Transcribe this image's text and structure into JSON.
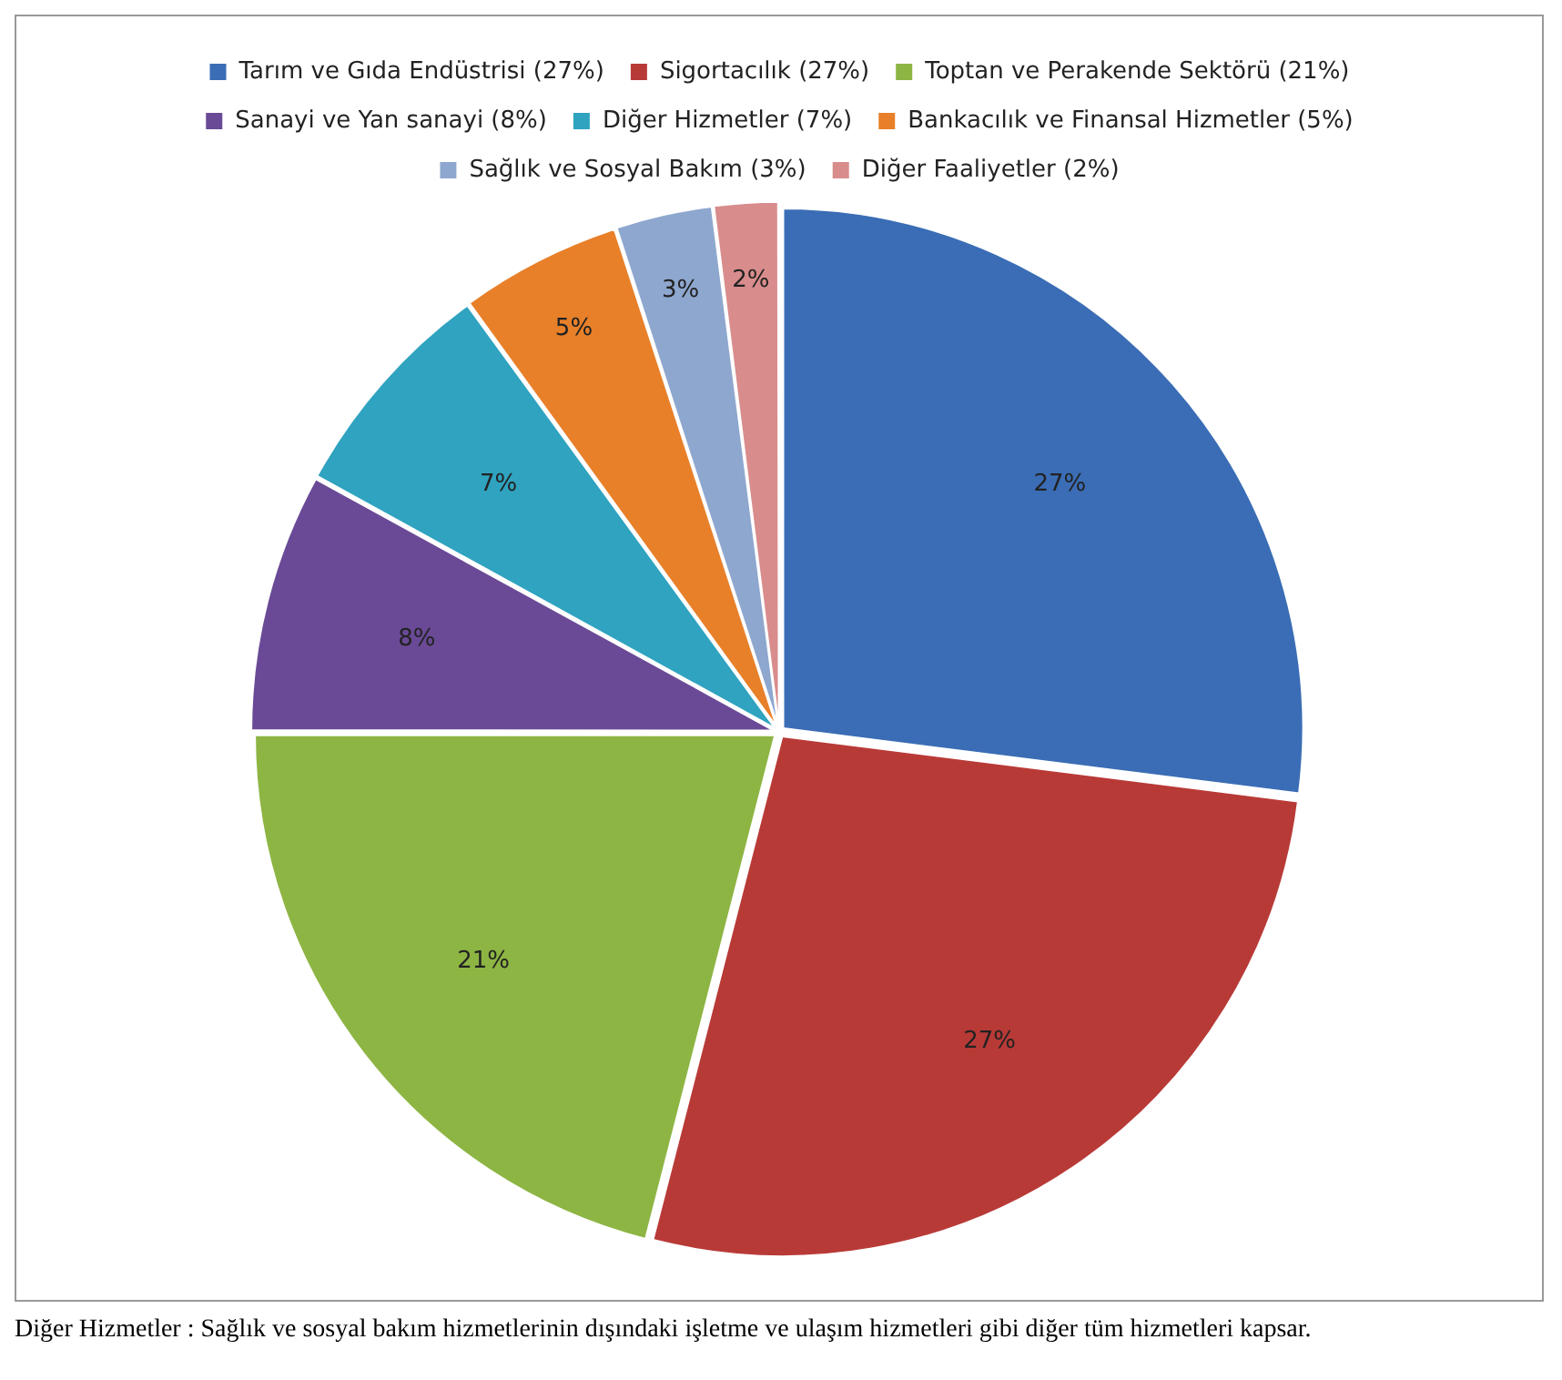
{
  "chart_data": {
    "type": "pie",
    "categories": [
      "Tarım ve Gıda Endüstrisi (27%)",
      "Sigortacılık (27%)",
      "Toptan ve Perakende Sektörü (21%)",
      "Sanayi ve Yan sanayi (8%)",
      "Diğer Hizmetler (7%)",
      "Bankacılık ve Finansal Hizmetler (5%)",
      "Sağlık ve Sosyal Bakım (3%)",
      "Diğer Faaliyetler (2%)"
    ],
    "values": [
      27,
      27,
      21,
      8,
      7,
      5,
      3,
      2
    ],
    "colors": [
      "#3a6db5",
      "#b83a37",
      "#8db543",
      "#6a4a96",
      "#2fa3c0",
      "#e8802a",
      "#8ea7cf",
      "#d98c8c"
    ],
    "value_labels": [
      "27%",
      "27%",
      "21%",
      "8%",
      "7%",
      "5%",
      "3%",
      "2%"
    ],
    "legend": "top",
    "annotations": [
      "Diğer Hizmetler : Sağlık ve sosyal bakım hizmetlerinin dışındaki işletme ve ulaşım hizmetleri gibi diğer tüm hizmetleri kapsar."
    ]
  }
}
